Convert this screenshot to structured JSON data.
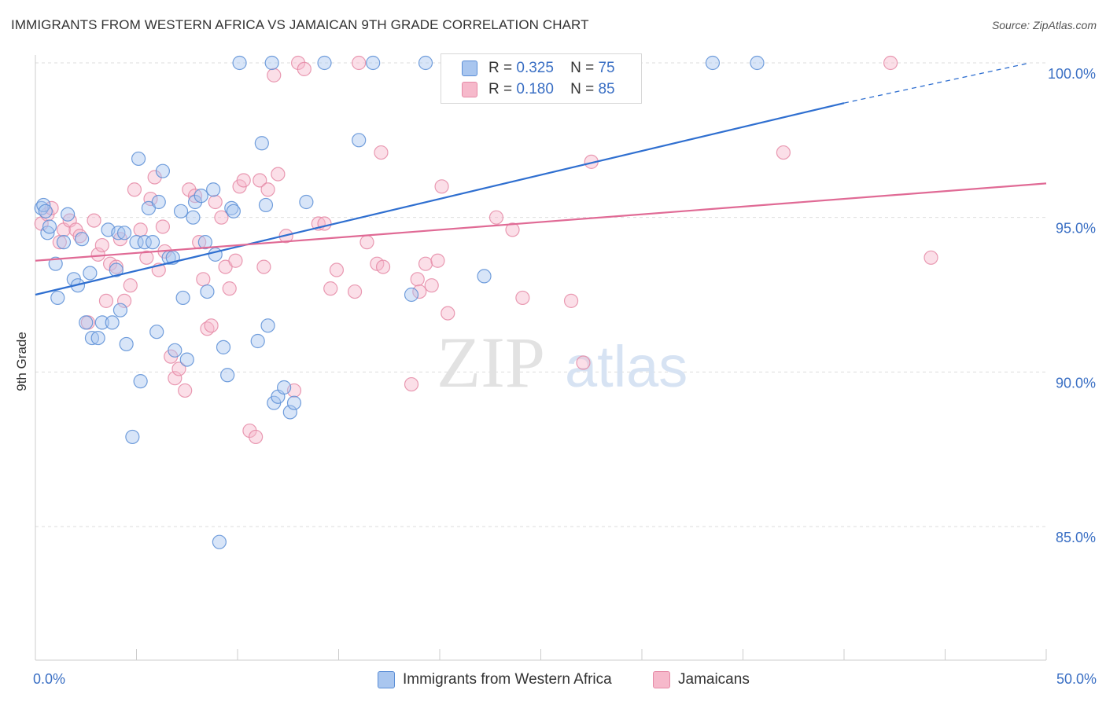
{
  "title": "IMMIGRANTS FROM WESTERN AFRICA VS JAMAICAN 9TH GRADE CORRELATION CHART",
  "source": "Source: ZipAtlas.com",
  "watermark": {
    "zip": "ZIP",
    "atlas": "atlas"
  },
  "legend": {
    "series1": {
      "r_label": "R =",
      "r_value": "0.325",
      "n_label": "N =",
      "n_value": "75"
    },
    "series2": {
      "r_label": "R =",
      "r_value": "0.180",
      "n_label": "N =",
      "n_value": "85"
    }
  },
  "bottom_legend": {
    "series1": "Immigrants from Western Africa",
    "series2": "Jamaicans"
  },
  "colors": {
    "series1_fill": "#a9c6ef",
    "series1_stroke": "#5b8ed6",
    "series1_line": "#2f6fd0",
    "series2_fill": "#f6b9cb",
    "series2_stroke": "#e58aa6",
    "series2_line": "#e06a95",
    "tick_label": "#3a6fc4",
    "grid": "#dddddd"
  },
  "chart_data": {
    "type": "scatter",
    "title": "IMMIGRANTS FROM WESTERN AFRICA VS JAMAICAN 9TH GRADE CORRELATION CHART",
    "xlabel": "",
    "ylabel": "9th Grade",
    "xlim": [
      0,
      50
    ],
    "ylim": [
      80.5,
      100.8
    ],
    "x_tick_labels": [
      "0.0%",
      "50.0%"
    ],
    "x_tick_values": [
      0,
      50
    ],
    "x_minor_ticks": [
      0,
      5,
      10,
      15,
      20,
      25,
      30,
      35,
      40,
      45,
      50
    ],
    "y_ticks": [
      {
        "value": 100,
        "label": "100.0%"
      },
      {
        "value": 95,
        "label": "95.0%"
      },
      {
        "value": 90,
        "label": "90.0%"
      },
      {
        "value": 85,
        "label": "85.0%"
      }
    ],
    "grid": true,
    "legend_position": "top-center",
    "series": [
      {
        "name": "Immigrants from Western Africa",
        "trend": {
          "x": [
            0,
            40,
            49.2
          ],
          "y": [
            92.5,
            98.7,
            100.0
          ],
          "dashed_from_x": 40
        },
        "points": [
          [
            0.3,
            95.3
          ],
          [
            0.4,
            95.4
          ],
          [
            0.5,
            95.2
          ],
          [
            0.6,
            94.5
          ],
          [
            0.7,
            94.7
          ],
          [
            1.0,
            93.5
          ],
          [
            1.1,
            92.4
          ],
          [
            1.4,
            94.2
          ],
          [
            1.6,
            95.1
          ],
          [
            1.9,
            93.0
          ],
          [
            2.1,
            92.8
          ],
          [
            2.3,
            94.3
          ],
          [
            2.5,
            91.6
          ],
          [
            2.7,
            93.2
          ],
          [
            2.8,
            91.1
          ],
          [
            3.1,
            91.1
          ],
          [
            3.3,
            91.6
          ],
          [
            3.6,
            94.6
          ],
          [
            3.8,
            91.6
          ],
          [
            4.0,
            93.3
          ],
          [
            4.1,
            94.5
          ],
          [
            4.2,
            92.0
          ],
          [
            4.4,
            94.5
          ],
          [
            4.5,
            90.9
          ],
          [
            4.8,
            87.9
          ],
          [
            5.0,
            94.2
          ],
          [
            5.1,
            96.9
          ],
          [
            5.2,
            89.7
          ],
          [
            5.4,
            94.2
          ],
          [
            5.6,
            95.3
          ],
          [
            5.8,
            94.2
          ],
          [
            6.0,
            91.3
          ],
          [
            6.1,
            95.5
          ],
          [
            6.3,
            96.5
          ],
          [
            6.6,
            93.7
          ],
          [
            6.8,
            93.7
          ],
          [
            6.9,
            90.7
          ],
          [
            7.2,
            95.2
          ],
          [
            7.3,
            92.4
          ],
          [
            7.5,
            90.4
          ],
          [
            7.8,
            95.0
          ],
          [
            7.9,
            95.5
          ],
          [
            8.2,
            95.7
          ],
          [
            8.4,
            94.2
          ],
          [
            8.5,
            92.6
          ],
          [
            8.8,
            95.9
          ],
          [
            8.9,
            93.8
          ],
          [
            9.1,
            84.5
          ],
          [
            9.3,
            90.8
          ],
          [
            9.5,
            89.9
          ],
          [
            9.7,
            95.3
          ],
          [
            9.8,
            95.2
          ],
          [
            10.1,
            100.0
          ],
          [
            11.0,
            91.0
          ],
          [
            11.2,
            97.4
          ],
          [
            11.4,
            95.4
          ],
          [
            11.5,
            91.5
          ],
          [
            11.7,
            100.0
          ],
          [
            11.8,
            89.0
          ],
          [
            12.0,
            89.2
          ],
          [
            12.3,
            89.5
          ],
          [
            12.6,
            88.7
          ],
          [
            12.8,
            89.0
          ],
          [
            13.4,
            95.5
          ],
          [
            14.3,
            100.0
          ],
          [
            16.0,
            97.5
          ],
          [
            16.7,
            100.0
          ],
          [
            18.6,
            92.5
          ],
          [
            19.3,
            100.0
          ],
          [
            22.2,
            93.1
          ],
          [
            33.5,
            100.0
          ],
          [
            35.7,
            100.0
          ]
        ]
      },
      {
        "name": "Jamaicans",
        "trend": {
          "x": [
            0,
            50
          ],
          "y": [
            93.6,
            96.1
          ]
        },
        "points": [
          [
            0.3,
            94.8
          ],
          [
            0.6,
            95.1
          ],
          [
            0.8,
            95.3
          ],
          [
            1.2,
            94.2
          ],
          [
            1.4,
            94.6
          ],
          [
            1.7,
            94.9
          ],
          [
            2.0,
            94.6
          ],
          [
            2.2,
            94.4
          ],
          [
            2.6,
            91.6
          ],
          [
            2.9,
            94.9
          ],
          [
            3.1,
            93.8
          ],
          [
            3.3,
            94.1
          ],
          [
            3.5,
            92.3
          ],
          [
            3.7,
            93.5
          ],
          [
            4.0,
            93.4
          ],
          [
            4.2,
            94.3
          ],
          [
            4.4,
            92.3
          ],
          [
            4.7,
            92.8
          ],
          [
            4.9,
            95.9
          ],
          [
            5.2,
            94.6
          ],
          [
            5.5,
            93.7
          ],
          [
            5.7,
            95.6
          ],
          [
            5.9,
            96.3
          ],
          [
            6.1,
            93.3
          ],
          [
            6.3,
            94.7
          ],
          [
            6.4,
            93.9
          ],
          [
            6.7,
            90.5
          ],
          [
            6.9,
            89.8
          ],
          [
            7.1,
            90.1
          ],
          [
            7.4,
            89.4
          ],
          [
            7.6,
            95.9
          ],
          [
            7.9,
            95.7
          ],
          [
            8.1,
            94.2
          ],
          [
            8.3,
            93.0
          ],
          [
            8.5,
            91.4
          ],
          [
            8.7,
            91.5
          ],
          [
            8.9,
            95.5
          ],
          [
            9.2,
            95.0
          ],
          [
            9.4,
            93.4
          ],
          [
            9.6,
            92.7
          ],
          [
            9.9,
            93.6
          ],
          [
            10.1,
            96.0
          ],
          [
            10.3,
            96.2
          ],
          [
            10.6,
            88.1
          ],
          [
            10.9,
            87.9
          ],
          [
            11.1,
            96.2
          ],
          [
            11.3,
            93.4
          ],
          [
            11.5,
            95.9
          ],
          [
            11.8,
            99.6
          ],
          [
            12.0,
            96.4
          ],
          [
            12.4,
            94.4
          ],
          [
            12.8,
            89.4
          ],
          [
            13.0,
            100.0
          ],
          [
            13.3,
            99.8
          ],
          [
            14.0,
            94.8
          ],
          [
            14.3,
            94.8
          ],
          [
            14.6,
            92.7
          ],
          [
            14.9,
            93.3
          ],
          [
            15.8,
            92.6
          ],
          [
            16.0,
            100.0
          ],
          [
            16.4,
            94.2
          ],
          [
            16.9,
            93.5
          ],
          [
            17.2,
            93.4
          ],
          [
            17.1,
            97.1
          ],
          [
            18.6,
            89.6
          ],
          [
            18.9,
            93.0
          ],
          [
            19.0,
            92.6
          ],
          [
            19.3,
            93.5
          ],
          [
            19.6,
            92.8
          ],
          [
            19.9,
            93.6
          ],
          [
            20.1,
            96.0
          ],
          [
            20.4,
            91.9
          ],
          [
            22.8,
            95.0
          ],
          [
            23.6,
            94.6
          ],
          [
            24.1,
            92.4
          ],
          [
            26.5,
            92.3
          ],
          [
            27.1,
            90.3
          ],
          [
            27.5,
            96.8
          ],
          [
            37.0,
            97.1
          ],
          [
            42.3,
            100.0
          ],
          [
            44.3,
            93.7
          ]
        ]
      }
    ]
  }
}
